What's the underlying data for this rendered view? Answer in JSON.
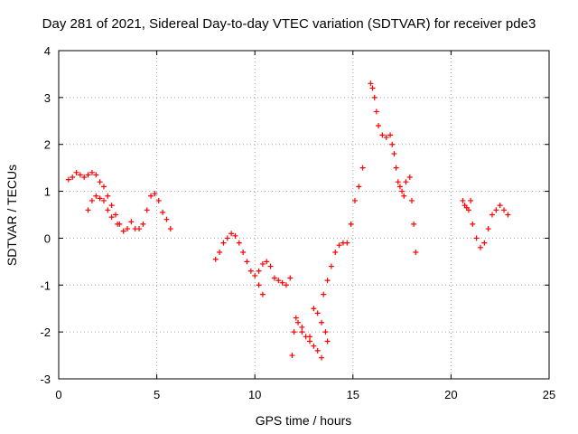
{
  "chart_data": {
    "type": "scatter",
    "title": "Day 281 of 2021, Sidereal Day-to-day VTEC variation (SDTVAR) for receiver pde3",
    "xlabel": "GPS time / hours",
    "ylabel": "SDTVAR / TECUs",
    "xlim": [
      0,
      25
    ],
    "ylim": [
      -3,
      4
    ],
    "xticks": [
      0,
      5,
      10,
      15,
      20,
      25
    ],
    "yticks": [
      -3,
      -2,
      -1,
      0,
      1,
      2,
      3,
      4
    ],
    "grid": true,
    "marker": "+",
    "color": "#ff0000",
    "series": [
      {
        "name": "SDTVAR",
        "x": [
          0.5,
          0.7,
          0.9,
          1.1,
          1.3,
          1.5,
          1.7,
          1.9,
          2.1,
          2.3,
          2.5,
          2.7,
          2.9,
          3.1,
          3.3,
          3.5,
          3.7,
          3.9,
          4.1,
          4.3,
          4.5,
          4.7,
          4.9,
          5.1,
          5.3,
          5.5,
          5.7,
          1.5,
          1.7,
          1.9,
          2.1,
          2.3,
          2.5,
          2.7,
          3.0,
          8.0,
          8.2,
          8.4,
          8.6,
          8.8,
          9.0,
          9.2,
          9.4,
          9.6,
          9.8,
          10.0,
          10.2,
          10.4,
          10.6,
          10.8,
          11.0,
          11.2,
          11.4,
          11.6,
          11.8,
          10.2,
          10.4,
          11.9,
          12.0,
          12.2,
          12.4,
          12.6,
          12.8,
          13.0,
          13.2,
          13.4,
          12.1,
          12.4,
          12.8,
          13.0,
          13.2,
          13.4,
          13.6,
          13.7,
          13.5,
          13.7,
          13.9,
          14.1,
          14.3,
          14.5,
          14.7,
          14.9,
          15.1,
          15.3,
          15.5,
          15.9,
          16.0,
          16.1,
          16.2,
          16.3,
          16.5,
          16.7,
          16.9,
          17.0,
          17.1,
          17.2,
          17.3,
          17.5,
          17.7,
          17.9,
          18.0,
          18.1,
          18.2,
          17.4,
          17.6,
          20.6,
          20.7,
          20.8,
          20.9,
          21.0,
          21.1,
          21.3,
          21.5,
          21.7,
          21.9,
          22.1,
          22.3,
          22.5,
          22.7,
          22.9
        ],
        "y": [
          1.25,
          1.3,
          1.4,
          1.35,
          1.3,
          1.35,
          1.4,
          1.35,
          1.2,
          1.1,
          0.9,
          0.7,
          0.5,
          0.3,
          0.15,
          0.2,
          0.35,
          0.2,
          0.2,
          0.3,
          0.6,
          0.9,
          0.95,
          0.8,
          0.55,
          0.4,
          0.2,
          0.6,
          0.8,
          0.9,
          0.85,
          0.8,
          0.6,
          0.45,
          0.3,
          -0.45,
          -0.3,
          -0.1,
          0.0,
          0.1,
          0.05,
          -0.1,
          -0.3,
          -0.5,
          -0.7,
          -0.8,
          -0.7,
          -0.55,
          -0.5,
          -0.6,
          -0.85,
          -0.9,
          -0.95,
          -1.0,
          -0.85,
          -1.0,
          -1.2,
          -2.5,
          -2.0,
          -1.8,
          -2.0,
          -2.1,
          -2.2,
          -2.3,
          -2.4,
          -2.55,
          -1.7,
          -1.9,
          -2.1,
          -1.5,
          -1.6,
          -1.8,
          -2.0,
          -2.2,
          -1.2,
          -0.9,
          -0.6,
          -0.3,
          -0.15,
          -0.1,
          -0.1,
          0.3,
          0.8,
          1.1,
          1.5,
          3.3,
          3.2,
          3.0,
          2.7,
          2.4,
          2.2,
          2.15,
          2.2,
          2.0,
          1.8,
          1.5,
          1.2,
          1.0,
          1.2,
          1.3,
          0.8,
          0.3,
          -0.3,
          1.1,
          0.9,
          0.8,
          0.7,
          0.65,
          0.6,
          0.8,
          0.3,
          0.0,
          -0.2,
          -0.1,
          0.2,
          0.5,
          0.6,
          0.7,
          0.6,
          0.5
        ]
      }
    ]
  }
}
